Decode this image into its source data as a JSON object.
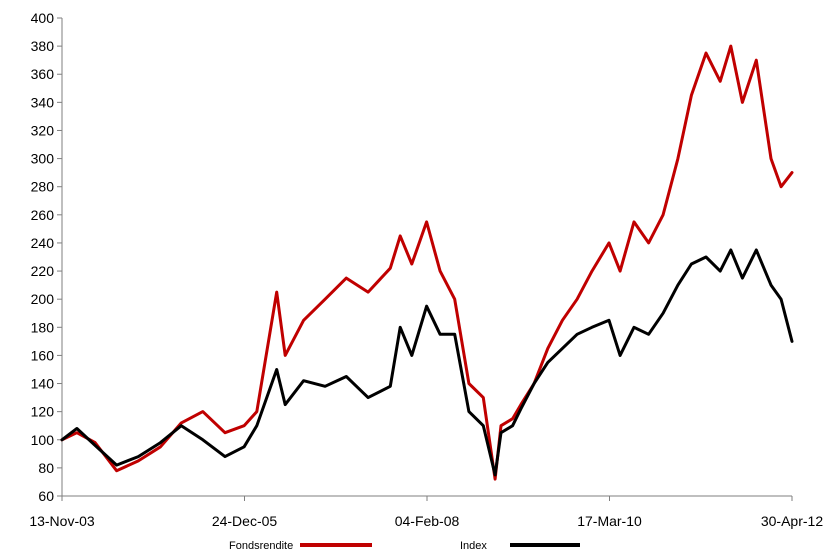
{
  "chart_data": {
    "type": "line",
    "title": "",
    "xlabel": "",
    "ylabel": "",
    "ylim": [
      60,
      400
    ],
    "yticks": [
      60,
      80,
      100,
      120,
      140,
      160,
      180,
      200,
      220,
      240,
      260,
      280,
      300,
      320,
      340,
      360,
      380,
      400
    ],
    "xtick_labels": [
      "13-Nov-03",
      "24-Dec-05",
      "04-Feb-08",
      "17-Mar-10",
      "30-Apr-12"
    ],
    "xlim": [
      "2003-11-13",
      "2012-04-30"
    ],
    "x": [
      "2003-11-13",
      "2004-01-15",
      "2004-04-01",
      "2004-07-01",
      "2004-10-01",
      "2005-01-03",
      "2005-04-01",
      "2005-07-01",
      "2005-10-03",
      "2005-12-23",
      "2006-02-15",
      "2006-05-10",
      "2006-06-15",
      "2006-09-01",
      "2006-12-01",
      "2007-03-01",
      "2007-06-01",
      "2007-09-03",
      "2007-10-15",
      "2007-12-03",
      "2008-02-04",
      "2008-04-01",
      "2008-06-02",
      "2008-08-01",
      "2008-10-01",
      "2008-11-20",
      "2008-12-15",
      "2009-02-02",
      "2009-03-09",
      "2009-05-04",
      "2009-07-01",
      "2009-09-01",
      "2009-11-02",
      "2010-01-04",
      "2010-03-17",
      "2010-05-03",
      "2010-07-01",
      "2010-09-01",
      "2010-11-01",
      "2011-01-03",
      "2011-03-01",
      "2011-05-02",
      "2011-07-01",
      "2011-08-15",
      "2011-10-03",
      "2011-12-01",
      "2012-02-01",
      "2012-03-15",
      "2012-04-30"
    ],
    "series": [
      {
        "name": "Fondsrendite",
        "color": "#c00000",
        "values": [
          100,
          105,
          98,
          78,
          85,
          95,
          112,
          120,
          105,
          110,
          120,
          205,
          160,
          185,
          200,
          215,
          205,
          222,
          245,
          225,
          255,
          220,
          200,
          140,
          130,
          72,
          110,
          115,
          125,
          140,
          165,
          185,
          200,
          220,
          240,
          220,
          255,
          240,
          260,
          300,
          345,
          375,
          355,
          380,
          340,
          370,
          300,
          280,
          290
        ]
      },
      {
        "name": "Index",
        "color": "#000000",
        "values": [
          100,
          108,
          96,
          82,
          88,
          98,
          110,
          100,
          88,
          95,
          110,
          150,
          125,
          142,
          138,
          145,
          130,
          138,
          180,
          160,
          195,
          175,
          175,
          120,
          110,
          75,
          105,
          110,
          122,
          140,
          155,
          165,
          175,
          180,
          185,
          160,
          180,
          175,
          190,
          210,
          225,
          230,
          220,
          235,
          215,
          235,
          210,
          200,
          170
        ]
      }
    ],
    "legend": {
      "placement": "bottom-center",
      "entries": [
        "Fondsrendite",
        "Index"
      ]
    },
    "grid": false
  }
}
